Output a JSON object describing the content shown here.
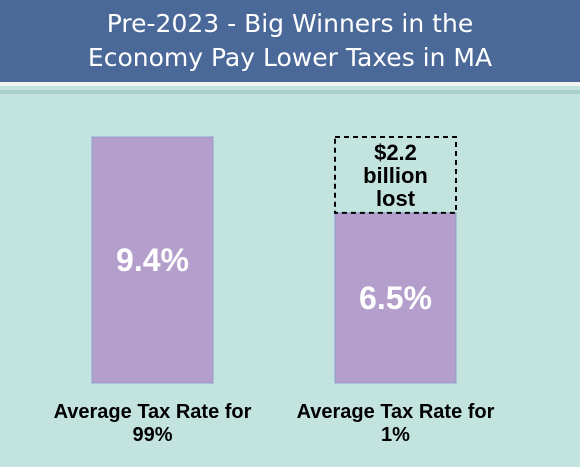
{
  "header": {
    "title_line1": "Pre-2023 - Big Winners in the",
    "title_line2": "Economy Pay Lower Taxes in MA"
  },
  "colors": {
    "header_bg": "#4a6898",
    "background": "#c3e3df",
    "bar_fill": "#b49fcc",
    "bar_stroke": "#8f9ccc"
  },
  "chart_data": {
    "type": "bar",
    "title": "Pre-2023 - Big Winners in the Economy Pay Lower Taxes in MA",
    "categories": [
      [
        "Average Tax Rate for",
        "99%"
      ],
      [
        "Average Tax Rate for",
        "1%"
      ]
    ],
    "values": [
      9.4,
      6.5
    ],
    "value_labels": [
      "9.4%",
      "6.5%"
    ],
    "ylim": [
      0,
      9.4
    ],
    "grid": false,
    "legend": "none",
    "annotations": [
      {
        "category_index": 1,
        "from": 6.5,
        "to": 9.4,
        "style": "dashed-box",
        "text_lines": [
          "$2.2",
          "billion",
          "lost"
        ]
      }
    ]
  }
}
